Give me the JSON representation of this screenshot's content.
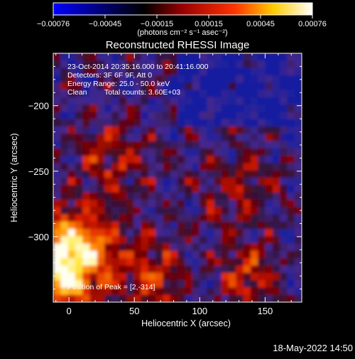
{
  "window": {
    "title": "Reconstructed RHESSI Image",
    "footer_timestamp": "18-May-2022 14:50"
  },
  "colorbar": {
    "ticks": [
      "-0.00076",
      "-0.00045",
      "-0.00015",
      "0.00015",
      "0.00045",
      "0.00076"
    ],
    "unit_label": "(photons cm⁻² s⁻¹ asec⁻²)",
    "colors": [
      "#0000ff",
      "#000000",
      "#ff0000",
      "#ffff00",
      "#ffffff"
    ]
  },
  "annotations": {
    "time_range": "23-Oct-2014 20:35:16.000 to 20:41:16.000",
    "detectors": "Detectors: 3F 6F 9F, Att 0",
    "energy_range": "Energy Range: 25.0 - 50.0 keV",
    "clean_label": "Clean",
    "total_counts": "Total counts: 3.60E+03",
    "peak_position": "Position of Peak = [2,-314]"
  },
  "chart_data": {
    "type": "heatmap",
    "title": "Reconstructed RHESSI Image",
    "xlabel": "Heliocentric X (arcsec)",
    "ylabel": "Heliocentric Y (arcsec)",
    "xlim": [
      -12,
      178
    ],
    "ylim": [
      -350,
      -160
    ],
    "x_ticks": [
      0,
      50,
      100,
      150
    ],
    "y_ticks": [
      -200,
      -250,
      -300
    ],
    "x_tick_labels": [
      "0",
      "50",
      "100",
      "150"
    ],
    "y_tick_labels": [
      "-200",
      "-250",
      "-300"
    ],
    "peak": [
      2,
      -314
    ],
    "grid": false
  }
}
